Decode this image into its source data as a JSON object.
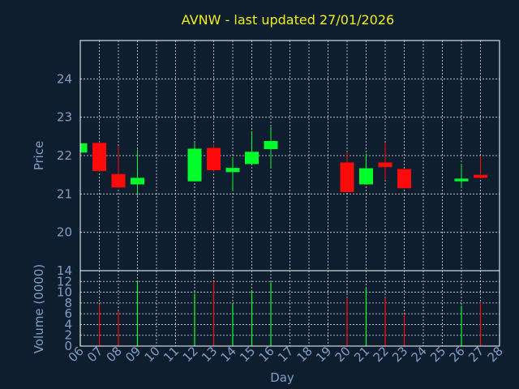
{
  "chart_data": {
    "type": "candlestick",
    "title": "AVNW - last updated 27/01/2026",
    "xlabel": "Day",
    "x_ticks": [
      "06",
      "07",
      "08",
      "09",
      "10",
      "11",
      "12",
      "13",
      "14",
      "15",
      "16",
      "17",
      "18",
      "19",
      "20",
      "21",
      "22",
      "23",
      "24",
      "25",
      "26",
      "27",
      "28"
    ],
    "x_range": [
      6,
      28
    ],
    "price": {
      "ylabel": "Price",
      "ylim": [
        19,
        25
      ],
      "y_ticks": [
        "20",
        "21",
        "22",
        "23",
        "24"
      ]
    },
    "volume": {
      "ylabel": "Volume (0000)",
      "ylim": [
        0,
        14
      ],
      "y_ticks": [
        "0",
        "2",
        "4",
        "6",
        "8",
        "10",
        "12",
        "14"
      ]
    },
    "colors": {
      "up": "#00ff2a",
      "down": "#ff0a0a"
    },
    "candles": [
      {
        "day": 6,
        "open": 22.08,
        "high": 22.35,
        "low": 22.05,
        "close": 22.32,
        "volume": 9.3
      },
      {
        "day": 7,
        "open": 22.33,
        "high": 22.35,
        "low": 21.58,
        "close": 21.6,
        "volume": 7.8
      },
      {
        "day": 8,
        "open": 21.52,
        "high": 22.25,
        "low": 21.15,
        "close": 21.17,
        "volume": 6.5
      },
      {
        "day": 9,
        "open": 21.25,
        "high": 22.15,
        "low": 20.95,
        "close": 21.42,
        "volume": 12.0
      },
      {
        "day": 12,
        "open": 21.33,
        "high": 22.33,
        "low": 21.33,
        "close": 22.18,
        "volume": 9.8
      },
      {
        "day": 13,
        "open": 22.2,
        "high": 22.3,
        "low": 21.58,
        "close": 21.62,
        "volume": 12.0
      },
      {
        "day": 14,
        "open": 21.57,
        "high": 21.95,
        "low": 21.08,
        "close": 21.68,
        "volume": 7.8
      },
      {
        "day": 15,
        "open": 21.78,
        "high": 22.62,
        "low": 21.78,
        "close": 22.1,
        "volume": 10.2
      },
      {
        "day": 16,
        "open": 22.17,
        "high": 22.75,
        "low": 21.68,
        "close": 22.38,
        "volume": 11.8
      },
      {
        "day": 20,
        "open": 21.82,
        "high": 22.1,
        "low": 21.05,
        "close": 21.05,
        "volume": 9.0
      },
      {
        "day": 21,
        "open": 21.25,
        "high": 22.05,
        "low": 21.25,
        "close": 21.67,
        "volume": 10.8
      },
      {
        "day": 22,
        "open": 21.82,
        "high": 22.33,
        "low": 21.38,
        "close": 21.7,
        "volume": 9.0
      },
      {
        "day": 23,
        "open": 21.65,
        "high": 21.65,
        "low": 21.15,
        "close": 21.15,
        "volume": 6.0
      },
      {
        "day": 26,
        "open": 21.33,
        "high": 21.78,
        "low": 21.17,
        "close": 21.4,
        "volume": 7.5
      },
      {
        "day": 27,
        "open": 21.5,
        "high": 22.0,
        "low": 21.4,
        "close": 21.42,
        "volume": 8.0
      }
    ]
  }
}
